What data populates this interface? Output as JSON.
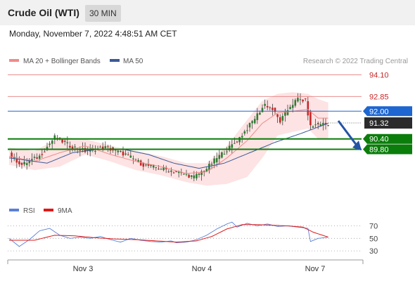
{
  "header": {
    "instrument": "Crude Oil (WTI)",
    "timeframe": "30 MIN",
    "timestamp": "Monday, November 7, 2022 4:48:51 AM CET"
  },
  "chart_data": [
    {
      "type": "candlestick",
      "legend": [
        {
          "label": "MA 20 + Bollinger Bands",
          "color": "#f08a8a"
        },
        {
          "label": "MA 50",
          "color": "#3b5998"
        }
      ],
      "watermark": "Research © 2022 Trading Central",
      "x_ticks": [
        "Nov 3",
        "Nov 4",
        "Nov 7"
      ],
      "ylim": [
        86.2,
        94.6
      ],
      "levels": [
        {
          "value": 94.1,
          "label": "94.10",
          "kind": "resistance",
          "color": "#e57373"
        },
        {
          "value": 92.85,
          "label": "92.85",
          "kind": "resistance",
          "color": "#e57373"
        },
        {
          "value": 92.0,
          "label": "92.00",
          "kind": "pivot",
          "color": "#1e66d0"
        },
        {
          "value": 91.32,
          "label": "91.32",
          "kind": "last",
          "color": "#2b2b2b"
        },
        {
          "value": 90.4,
          "label": "90.40",
          "kind": "support",
          "color": "#0b7d0b"
        },
        {
          "value": 89.8,
          "label": "89.80",
          "kind": "support",
          "color": "#0b7d0b"
        }
      ],
      "close_path": [
        [
          0,
          89.5
        ],
        [
          5,
          88.9
        ],
        [
          12,
          89.4
        ],
        [
          18,
          90.5
        ],
        [
          24,
          90.0
        ],
        [
          30,
          89.7
        ],
        [
          38,
          89.9
        ],
        [
          46,
          89.5
        ],
        [
          53,
          88.9
        ],
        [
          60,
          88.7
        ],
        [
          66,
          88.5
        ],
        [
          73,
          88.2
        ],
        [
          78,
          88.7
        ],
        [
          82,
          89.3
        ],
        [
          87,
          89.9
        ],
        [
          90,
          90.3
        ],
        [
          94,
          91.0
        ],
        [
          98,
          91.8
        ],
        [
          101,
          92.4
        ],
        [
          104,
          92.1
        ],
        [
          107,
          91.4
        ],
        [
          111,
          92.3
        ],
        [
          114,
          92.7
        ],
        [
          117,
          92.6
        ],
        [
          119,
          91.1
        ],
        [
          123,
          91.3
        ],
        [
          126,
          91.2
        ]
      ],
      "ma20_path": [
        [
          0,
          89.4
        ],
        [
          10,
          89.1
        ],
        [
          20,
          89.6
        ],
        [
          30,
          90.0
        ],
        [
          40,
          89.5
        ],
        [
          50,
          89.1
        ],
        [
          60,
          88.8
        ],
        [
          70,
          88.4
        ],
        [
          78,
          88.5
        ],
        [
          86,
          89.3
        ],
        [
          94,
          90.3
        ],
        [
          100,
          91.3
        ],
        [
          106,
          91.9
        ],
        [
          112,
          92.0
        ],
        [
          118,
          92.1
        ],
        [
          122,
          91.6
        ],
        [
          126,
          91.6
        ]
      ],
      "ma50_path": [
        [
          0,
          89.3
        ],
        [
          15,
          89.0
        ],
        [
          25,
          89.6
        ],
        [
          35,
          89.8
        ],
        [
          45,
          89.8
        ],
        [
          55,
          89.5
        ],
        [
          65,
          89.0
        ],
        [
          75,
          88.7
        ],
        [
          85,
          89.0
        ],
        [
          95,
          89.6
        ],
        [
          105,
          90.2
        ],
        [
          115,
          90.7
        ],
        [
          126,
          91.3
        ]
      ],
      "bb_upper_path": [
        [
          0,
          89.9
        ],
        [
          10,
          89.7
        ],
        [
          20,
          90.5
        ],
        [
          30,
          90.4
        ],
        [
          40,
          90.0
        ],
        [
          50,
          89.7
        ],
        [
          60,
          89.4
        ],
        [
          70,
          89.0
        ],
        [
          78,
          89.0
        ],
        [
          86,
          90.0
        ],
        [
          94,
          91.5
        ],
        [
          100,
          92.6
        ],
        [
          106,
          93.0
        ],
        [
          112,
          93.1
        ],
        [
          118,
          93.0
        ],
        [
          122,
          92.7
        ],
        [
          126,
          92.5
        ]
      ],
      "bb_lower_path": [
        [
          0,
          88.9
        ],
        [
          10,
          88.6
        ],
        [
          20,
          88.8
        ],
        [
          30,
          89.5
        ],
        [
          40,
          89.1
        ],
        [
          50,
          88.6
        ],
        [
          60,
          88.3
        ],
        [
          70,
          87.9
        ],
        [
          78,
          87.7
        ],
        [
          86,
          87.8
        ],
        [
          94,
          88.2
        ],
        [
          100,
          89.3
        ],
        [
          106,
          90.6
        ],
        [
          112,
          90.8
        ],
        [
          118,
          91.0
        ],
        [
          122,
          90.4
        ],
        [
          126,
          90.4
        ]
      ],
      "forecast_arrow": {
        "from": 91.2,
        "to": 90.1
      }
    },
    {
      "type": "line",
      "legend": [
        {
          "label": "RSI",
          "color": "#5b7fd6"
        },
        {
          "label": "9MA",
          "color": "#e01818"
        }
      ],
      "ylim": [
        20,
        80
      ],
      "y_ticks": [
        "70",
        "50",
        "30"
      ],
      "rsi_path": [
        [
          0,
          50
        ],
        [
          4,
          37
        ],
        [
          8,
          48
        ],
        [
          12,
          62
        ],
        [
          16,
          66
        ],
        [
          20,
          55
        ],
        [
          24,
          50
        ],
        [
          28,
          52
        ],
        [
          32,
          50
        ],
        [
          36,
          53
        ],
        [
          40,
          48
        ],
        [
          44,
          44
        ],
        [
          48,
          50
        ],
        [
          52,
          47
        ],
        [
          56,
          45
        ],
        [
          60,
          44
        ],
        [
          64,
          46
        ],
        [
          66,
          43
        ],
        [
          70,
          44
        ],
        [
          74,
          48
        ],
        [
          78,
          55
        ],
        [
          82,
          65
        ],
        [
          86,
          73
        ],
        [
          88,
          76
        ],
        [
          90,
          68
        ],
        [
          94,
          74
        ],
        [
          98,
          70
        ],
        [
          102,
          73
        ],
        [
          106,
          69
        ],
        [
          110,
          70
        ],
        [
          114,
          68
        ],
        [
          118,
          66
        ],
        [
          119,
          45
        ],
        [
          122,
          50
        ],
        [
          126,
          52
        ]
      ],
      "ma9_path": [
        [
          0,
          47
        ],
        [
          10,
          47
        ],
        [
          18,
          55
        ],
        [
          26,
          54
        ],
        [
          34,
          51
        ],
        [
          42,
          49
        ],
        [
          50,
          48
        ],
        [
          58,
          46
        ],
        [
          66,
          44
        ],
        [
          74,
          46
        ],
        [
          80,
          53
        ],
        [
          86,
          65
        ],
        [
          92,
          72
        ],
        [
          98,
          72
        ],
        [
          104,
          71
        ],
        [
          110,
          70
        ],
        [
          116,
          68
        ],
        [
          120,
          60
        ],
        [
          126,
          52
        ]
      ]
    }
  ]
}
